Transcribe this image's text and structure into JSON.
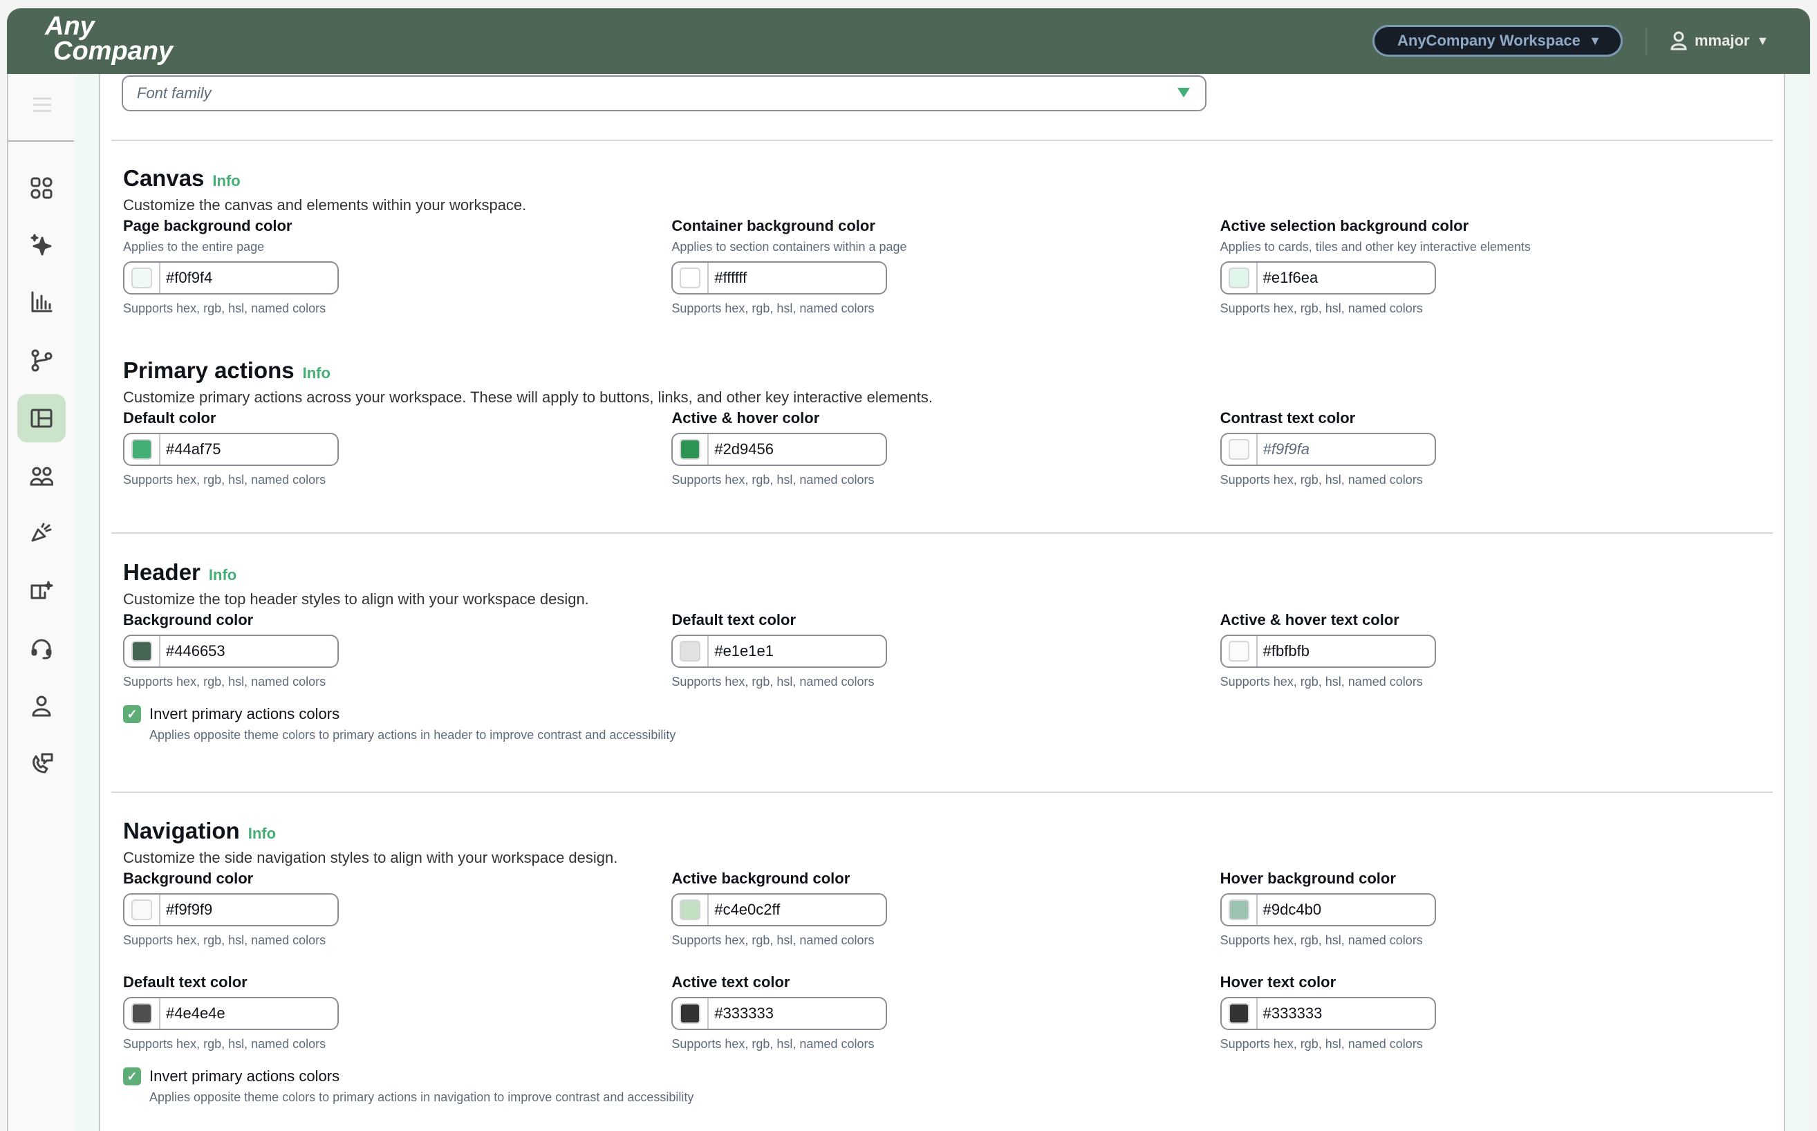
{
  "header": {
    "logo_line1": "Any",
    "logo_line2": "Company",
    "workspace_label": "AnyCompany Workspace",
    "user_name": "mmajor",
    "background": "#4e6655"
  },
  "sidebar": {
    "items": [
      {
        "icon": "dashboard-grid-icon"
      },
      {
        "icon": "sparkle-icon"
      },
      {
        "icon": "bar-chart-icon"
      },
      {
        "icon": "branch-icon"
      },
      {
        "icon": "layout-icon",
        "active": true
      },
      {
        "icon": "users-icon"
      },
      {
        "icon": "megaphone-icon"
      },
      {
        "icon": "book-sparkle-icon"
      },
      {
        "icon": "headset-icon"
      },
      {
        "icon": "user-icon"
      },
      {
        "icon": "phone-chat-icon"
      }
    ]
  },
  "font_family": {
    "placeholder": "Font family"
  },
  "supports_text": "Supports hex, rgb, hsl, named colors",
  "sections": [
    {
      "title": "Canvas",
      "info": "Info",
      "description": "Customize the canvas and elements within your workspace.",
      "rows": [
        [
          {
            "label": "Page background color",
            "help": "Applies to the entire page",
            "value": "#f0f9f4"
          },
          {
            "label": "Container background color",
            "help": "Applies to section containers within a page",
            "value": "#ffffff"
          },
          {
            "label": "Active selection background color",
            "help": "Applies to cards, tiles and other key interactive elements",
            "value": "#e1f6ea"
          }
        ]
      ]
    },
    {
      "title": "Primary actions",
      "info": "Info",
      "description": "Customize primary actions across your workspace. These will apply to buttons, links, and other key interactive elements.",
      "rows": [
        [
          {
            "label": "Default color",
            "value": "#44af75"
          },
          {
            "label": "Active & hover color",
            "value": "#2d9456"
          },
          {
            "label": "Contrast text color",
            "value": "#f9f9fa",
            "placeholder": true
          }
        ]
      ]
    },
    {
      "title": "Header",
      "info": "Info",
      "description": "Customize the top header styles to align with your workspace design.",
      "rows": [
        [
          {
            "label": "Background color",
            "value": "#446653"
          },
          {
            "label": "Default text color",
            "value": "#e1e1e1"
          },
          {
            "label": "Active & hover text color",
            "value": "#fbfbfb"
          }
        ]
      ],
      "checkbox": {
        "label": "Invert primary actions colors",
        "checked": true,
        "description": "Applies opposite theme colors to primary actions in header to improve contrast and accessibility"
      }
    },
    {
      "title": "Navigation",
      "info": "Info",
      "description": "Customize the side navigation styles to align with your workspace design.",
      "rows": [
        [
          {
            "label": "Background color",
            "value": "#f9f9f9"
          },
          {
            "label": "Active background color",
            "value": "#c4e0c2ff"
          },
          {
            "label": "Hover background color",
            "value": "#9dc4b0"
          }
        ],
        [
          {
            "label": "Default text color",
            "value": "#4e4e4e"
          },
          {
            "label": "Active text color",
            "value": "#333333"
          },
          {
            "label": "Hover text color",
            "value": "#333333"
          }
        ]
      ],
      "checkbox": {
        "label": "Invert primary actions colors",
        "checked": true,
        "description": "Applies opposite theme colors to primary actions in navigation to improve contrast and accessibility"
      }
    }
  ]
}
